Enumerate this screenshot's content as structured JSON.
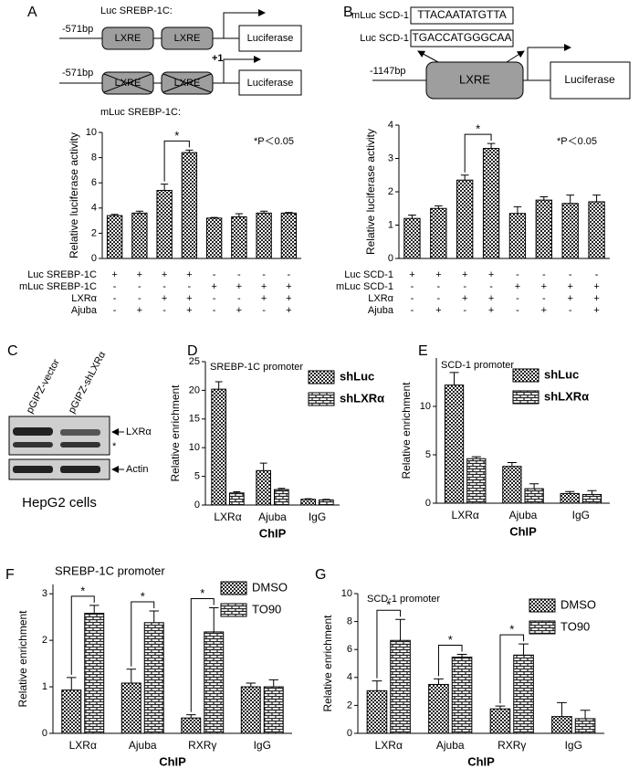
{
  "diagram_a": {
    "label": "A",
    "wild_label": "Luc SREBP-1C:",
    "wild_position": "-571bp",
    "wild_elements": [
      "LXRE",
      "LXRE"
    ],
    "start": "+1",
    "wild_reporter": "Luciferase",
    "mutant_position": "-571bp",
    "mutant_elements": [
      "LXRE",
      "LXRE"
    ],
    "mutant_reporter": "Luciferase",
    "mutant_label": "mLuc SREBP-1C:"
  },
  "diagram_b": {
    "label": "B",
    "mutant_label": "mLuc SCD-1",
    "mutant_sequence": "TTACAATATGTTA",
    "wild_label": "Luc SCD-1",
    "wild_sequence": "TGACCATGGGCAA",
    "position": "-1147bp",
    "element": "LXRE",
    "reporter": "Luciferase"
  },
  "blot": {
    "label": "C",
    "lanes": [
      "pGIPZ-vector",
      "pGIPZ-shLXRα"
    ],
    "bands": [
      "LXRα",
      "*",
      "Actin"
    ],
    "caption": "HepG2 cells"
  },
  "chart_data": [
    {
      "type": "bar",
      "ylabel": "Relative luciferase activity",
      "annotation": "*P＜0.05",
      "categories": [
        null,
        null,
        null,
        null,
        null,
        null,
        null,
        null
      ],
      "series": [
        {
          "fill": "checker",
          "values": [
            3.4,
            3.6,
            5.4,
            8.4,
            3.2,
            3.3,
            3.6,
            3.6
          ],
          "errors": [
            0.1,
            0.15,
            0.5,
            0.2,
            0.05,
            0.25,
            0.15,
            0.05
          ]
        }
      ],
      "ylim": [
        0,
        10
      ],
      "yticks": [
        0,
        2,
        4,
        6,
        8,
        10
      ],
      "significance": [
        {
          "label": "*",
          "bars": [
            2,
            3
          ]
        }
      ],
      "conditions": [
        {
          "label": "Luc SREBP-1C",
          "signs": [
            "+",
            "+",
            "+",
            "+",
            "-",
            "-",
            "-",
            "-"
          ]
        },
        {
          "label": "mLuc SREBP-1C",
          "signs": [
            "-",
            "-",
            "-",
            "-",
            "+",
            "+",
            "+",
            "+"
          ]
        },
        {
          "label": "LXRα",
          "signs": [
            "-",
            "-",
            "+",
            "+",
            "-",
            "-",
            "+",
            "+"
          ]
        },
        {
          "label": "Ajuba",
          "signs": [
            "-",
            "+",
            "-",
            "+",
            "-",
            "+",
            "-",
            "+"
          ]
        }
      ]
    },
    {
      "type": "bar",
      "ylabel": "Relative luciferase activity",
      "annotation": "*P＜0.05",
      "categories": [
        null,
        null,
        null,
        null,
        null,
        null,
        null,
        null
      ],
      "series": [
        {
          "fill": "checker",
          "values": [
            1.2,
            1.5,
            2.35,
            3.3,
            1.35,
            1.75,
            1.65,
            1.7
          ],
          "errors": [
            0.1,
            0.08,
            0.15,
            0.15,
            0.2,
            0.1,
            0.25,
            0.2
          ]
        }
      ],
      "ylim": [
        0,
        4
      ],
      "yticks": [
        0,
        1,
        2,
        3,
        4
      ],
      "significance": [
        {
          "label": "*",
          "bars": [
            2,
            3
          ]
        }
      ],
      "conditions": [
        {
          "label": "Luc SCD-1",
          "signs": [
            "+",
            "+",
            "+",
            "+",
            "-",
            "-",
            "-",
            "-"
          ]
        },
        {
          "label": "mLuc SCD-1",
          "signs": [
            "-",
            "-",
            "-",
            "-",
            "+",
            "+",
            "+",
            "+"
          ]
        },
        {
          "label": "LXRα",
          "signs": [
            "-",
            "-",
            "+",
            "+",
            "-",
            "-",
            "+",
            "+"
          ]
        },
        {
          "label": "Ajuba",
          "signs": [
            "-",
            "+",
            "-",
            "+",
            "-",
            "+",
            "-",
            "+"
          ]
        }
      ]
    },
    {
      "type": "bar",
      "label": "D",
      "title": "SREBP-1C promoter",
      "ylabel": "Relative enrichment",
      "xlabel": "ChIP",
      "categories": [
        "LXRα",
        "Ajuba",
        "IgG"
      ],
      "series": [
        {
          "name": "shLuc",
          "fill": "checker",
          "values": [
            20.2,
            6.0,
            1.0
          ],
          "errors": [
            1.3,
            1.3,
            0.1
          ]
        },
        {
          "name": "shLXRα",
          "fill": "brick",
          "values": [
            2.1,
            2.7,
            0.9
          ],
          "errors": [
            0.2,
            0.2,
            0.1
          ]
        }
      ],
      "ylim": [
        0,
        25
      ],
      "yticks": [
        0,
        5,
        10,
        15,
        20,
        25
      ]
    },
    {
      "type": "bar",
      "label": "E",
      "title": "SCD-1 promoter",
      "ylabel": "Relative enrichment",
      "xlabel": "ChIP",
      "categories": [
        "LXRα",
        "Ajuba",
        "IgG"
      ],
      "series": [
        {
          "name": "shLuc",
          "fill": "checker",
          "values": [
            12.2,
            3.8,
            1.0
          ],
          "errors": [
            1.3,
            0.4,
            0.2
          ]
        },
        {
          "name": "shLXRα",
          "fill": "brick",
          "values": [
            4.6,
            1.5,
            0.9
          ],
          "errors": [
            0.2,
            0.5,
            0.4
          ]
        }
      ],
      "ylim": [
        0,
        15
      ],
      "yticks": [
        0,
        5,
        10
      ]
    },
    {
      "type": "bar",
      "label": "F",
      "title": "SREBP-1C promoter",
      "ylabel": "Relative enrichment",
      "xlabel": "ChIP",
      "categories": [
        "LXRα",
        "Ajuba",
        "RXRγ",
        "IgG"
      ],
      "series": [
        {
          "name": "DMSO",
          "fill": "checker",
          "values": [
            0.93,
            1.08,
            0.33,
            1.0
          ],
          "errors": [
            0.27,
            0.3,
            0.07,
            0.08
          ]
        },
        {
          "name": "TO90",
          "fill": "brick",
          "values": [
            2.58,
            2.38,
            2.18,
            1.0
          ],
          "errors": [
            0.17,
            0.25,
            0.52,
            0.15
          ]
        }
      ],
      "ylim": [
        0,
        3.2
      ],
      "yticks": [
        0,
        1,
        2,
        3
      ],
      "significance": [
        {
          "label": "*",
          "category": 0
        },
        {
          "label": "*",
          "category": 1
        },
        {
          "label": "*",
          "category": 2
        }
      ]
    },
    {
      "type": "bar",
      "label": "G",
      "title": "SCD-1 promoter",
      "ylabel": "Relative enrichment",
      "xlabel": "ChIP",
      "categories": [
        "LXRα",
        "Ajuba",
        "RXRγ",
        "IgG"
      ],
      "series": [
        {
          "name": "DMSO",
          "fill": "checker",
          "values": [
            3.05,
            3.5,
            1.75,
            1.2
          ],
          "errors": [
            0.7,
            0.4,
            0.2,
            1.0
          ]
        },
        {
          "name": "TO90",
          "fill": "brick",
          "values": [
            6.65,
            5.45,
            5.6,
            1.05
          ],
          "errors": [
            1.5,
            0.2,
            0.8,
            0.6
          ]
        }
      ],
      "ylim": [
        0,
        10
      ],
      "yticks": [
        0,
        2,
        4,
        6,
        8,
        10
      ],
      "significance": [
        {
          "label": "*",
          "category": 0
        },
        {
          "label": "*",
          "category": 1
        },
        {
          "label": "*",
          "category": 2
        }
      ]
    }
  ]
}
